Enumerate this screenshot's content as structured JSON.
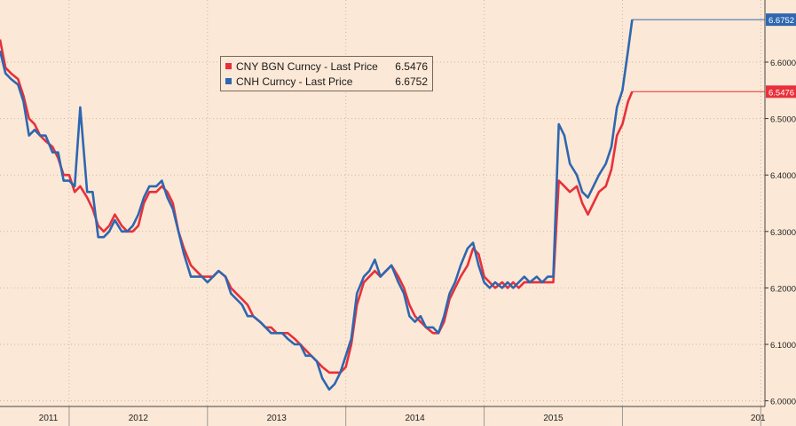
{
  "chart_data": {
    "type": "line",
    "title": "",
    "xlabel": "",
    "ylabel": "",
    "x_ticks": [
      "2011",
      "2012",
      "2013",
      "2014",
      "2015",
      "201"
    ],
    "y_ticks": [
      "6.0000",
      "6.1000",
      "6.2000",
      "6.3000",
      "6.4000",
      "6.5000",
      "6.6000"
    ],
    "ylim": [
      5.99,
      6.71
    ],
    "xlim": [
      2010.5,
      2016.03
    ],
    "grid": true,
    "legend_position": "top-left",
    "series": [
      {
        "name": "CNY BGN Curncy - Last Price",
        "last_label": "6.5476",
        "color": "#e8303a",
        "points": [
          [
            2010.5,
            6.64
          ],
          [
            2010.54,
            6.59
          ],
          [
            2010.58,
            6.58
          ],
          [
            2010.63,
            6.57
          ],
          [
            2010.67,
            6.54
          ],
          [
            2010.71,
            6.5
          ],
          [
            2010.75,
            6.49
          ],
          [
            2010.79,
            6.47
          ],
          [
            2010.83,
            6.46
          ],
          [
            2010.88,
            6.45
          ],
          [
            2010.92,
            6.43
          ],
          [
            2010.96,
            6.4
          ],
          [
            2011.0,
            6.4
          ],
          [
            2011.04,
            6.37
          ],
          [
            2011.08,
            6.38
          ],
          [
            2011.13,
            6.36
          ],
          [
            2011.17,
            6.34
          ],
          [
            2011.21,
            6.31
          ],
          [
            2011.25,
            6.3
          ],
          [
            2011.29,
            6.31
          ],
          [
            2011.33,
            6.33
          ],
          [
            2011.38,
            6.31
          ],
          [
            2011.42,
            6.3
          ],
          [
            2011.46,
            6.3
          ],
          [
            2011.5,
            6.31
          ],
          [
            2011.54,
            6.35
          ],
          [
            2011.58,
            6.37
          ],
          [
            2011.63,
            6.37
          ],
          [
            2011.67,
            6.38
          ],
          [
            2011.71,
            6.37
          ],
          [
            2011.75,
            6.35
          ],
          [
            2011.79,
            6.3
          ],
          [
            2011.83,
            6.27
          ],
          [
            2011.88,
            6.24
          ],
          [
            2011.92,
            6.23
          ],
          [
            2011.96,
            6.22
          ],
          [
            2012.0,
            6.22
          ],
          [
            2012.04,
            6.22
          ],
          [
            2012.08,
            6.23
          ],
          [
            2012.13,
            6.22
          ],
          [
            2012.17,
            6.2
          ],
          [
            2012.21,
            6.19
          ],
          [
            2012.25,
            6.18
          ],
          [
            2012.29,
            6.17
          ],
          [
            2012.33,
            6.15
          ],
          [
            2012.38,
            6.14
          ],
          [
            2012.42,
            6.13
          ],
          [
            2012.46,
            6.13
          ],
          [
            2012.5,
            6.12
          ],
          [
            2012.54,
            6.12
          ],
          [
            2012.58,
            6.12
          ],
          [
            2012.63,
            6.11
          ],
          [
            2012.67,
            6.1
          ],
          [
            2012.71,
            6.09
          ],
          [
            2012.75,
            6.08
          ],
          [
            2012.79,
            6.07
          ],
          [
            2012.83,
            6.06
          ],
          [
            2012.88,
            6.05
          ],
          [
            2012.92,
            6.05
          ],
          [
            2012.96,
            6.05
          ],
          [
            2013.0,
            6.06
          ],
          [
            2013.04,
            6.1
          ],
          [
            2013.08,
            6.17
          ],
          [
            2013.13,
            6.21
          ],
          [
            2013.17,
            6.22
          ],
          [
            2013.21,
            6.23
          ],
          [
            2013.25,
            6.22
          ],
          [
            2013.29,
            6.23
          ],
          [
            2013.33,
            6.24
          ],
          [
            2013.38,
            6.22
          ],
          [
            2013.42,
            6.2
          ],
          [
            2013.46,
            6.17
          ],
          [
            2013.5,
            6.15
          ],
          [
            2013.54,
            6.14
          ],
          [
            2013.58,
            6.13
          ],
          [
            2013.63,
            6.12
          ],
          [
            2013.67,
            6.12
          ],
          [
            2013.71,
            6.14
          ],
          [
            2013.75,
            6.18
          ],
          [
            2013.79,
            6.2
          ],
          [
            2013.83,
            6.22
          ],
          [
            2013.88,
            6.24
          ],
          [
            2013.92,
            6.27
          ],
          [
            2013.96,
            6.26
          ],
          [
            2014.0,
            6.22
          ],
          [
            2014.04,
            6.21
          ],
          [
            2014.08,
            6.2
          ],
          [
            2014.13,
            6.21
          ],
          [
            2014.17,
            6.2
          ],
          [
            2014.21,
            6.21
          ],
          [
            2014.25,
            6.2
          ],
          [
            2014.29,
            6.21
          ],
          [
            2014.33,
            6.21
          ],
          [
            2014.38,
            6.21
          ],
          [
            2014.42,
            6.21
          ],
          [
            2014.46,
            6.21
          ],
          [
            2014.5,
            6.21
          ],
          [
            2014.54,
            6.39
          ],
          [
            2014.58,
            6.38
          ],
          [
            2014.62,
            6.37
          ],
          [
            2014.67,
            6.38
          ],
          [
            2014.71,
            6.35
          ],
          [
            2014.75,
            6.33
          ],
          [
            2014.79,
            6.35
          ],
          [
            2014.83,
            6.37
          ],
          [
            2014.88,
            6.38
          ],
          [
            2014.92,
            6.41
          ],
          [
            2014.96,
            6.47
          ],
          [
            2015.0,
            6.49
          ],
          [
            2015.04,
            6.53
          ],
          [
            2015.07,
            6.5476
          ]
        ]
      },
      {
        "name": "CNH Curncy - Last Price",
        "last_label": "6.6752",
        "color": "#2e67b0",
        "points": [
          [
            2010.5,
            6.62
          ],
          [
            2010.54,
            6.58
          ],
          [
            2010.58,
            6.57
          ],
          [
            2010.63,
            6.56
          ],
          [
            2010.67,
            6.53
          ],
          [
            2010.71,
            6.47
          ],
          [
            2010.75,
            6.48
          ],
          [
            2010.79,
            6.47
          ],
          [
            2010.83,
            6.47
          ],
          [
            2010.88,
            6.44
          ],
          [
            2010.92,
            6.44
          ],
          [
            2010.96,
            6.39
          ],
          [
            2011.0,
            6.39
          ],
          [
            2011.04,
            6.38
          ],
          [
            2011.08,
            6.52
          ],
          [
            2011.13,
            6.37
          ],
          [
            2011.17,
            6.37
          ],
          [
            2011.21,
            6.29
          ],
          [
            2011.25,
            6.29
          ],
          [
            2011.29,
            6.3
          ],
          [
            2011.33,
            6.32
          ],
          [
            2011.38,
            6.3
          ],
          [
            2011.42,
            6.3
          ],
          [
            2011.46,
            6.31
          ],
          [
            2011.5,
            6.33
          ],
          [
            2011.54,
            6.36
          ],
          [
            2011.58,
            6.38
          ],
          [
            2011.63,
            6.38
          ],
          [
            2011.67,
            6.39
          ],
          [
            2011.71,
            6.36
          ],
          [
            2011.75,
            6.34
          ],
          [
            2011.79,
            6.3
          ],
          [
            2011.83,
            6.26
          ],
          [
            2011.88,
            6.22
          ],
          [
            2011.92,
            6.22
          ],
          [
            2011.96,
            6.22
          ],
          [
            2012.0,
            6.21
          ],
          [
            2012.04,
            6.22
          ],
          [
            2012.08,
            6.23
          ],
          [
            2012.13,
            6.22
          ],
          [
            2012.17,
            6.19
          ],
          [
            2012.21,
            6.18
          ],
          [
            2012.25,
            6.17
          ],
          [
            2012.29,
            6.15
          ],
          [
            2012.33,
            6.15
          ],
          [
            2012.38,
            6.14
          ],
          [
            2012.42,
            6.13
          ],
          [
            2012.46,
            6.12
          ],
          [
            2012.5,
            6.12
          ],
          [
            2012.54,
            6.12
          ],
          [
            2012.58,
            6.11
          ],
          [
            2012.63,
            6.1
          ],
          [
            2012.67,
            6.1
          ],
          [
            2012.71,
            6.08
          ],
          [
            2012.75,
            6.08
          ],
          [
            2012.79,
            6.07
          ],
          [
            2012.83,
            6.04
          ],
          [
            2012.88,
            6.02
          ],
          [
            2012.92,
            6.03
          ],
          [
            2012.96,
            6.05
          ],
          [
            2013.0,
            6.08
          ],
          [
            2013.04,
            6.11
          ],
          [
            2013.08,
            6.19
          ],
          [
            2013.13,
            6.22
          ],
          [
            2013.17,
            6.23
          ],
          [
            2013.21,
            6.25
          ],
          [
            2013.25,
            6.22
          ],
          [
            2013.29,
            6.23
          ],
          [
            2013.33,
            6.24
          ],
          [
            2013.38,
            6.21
          ],
          [
            2013.42,
            6.19
          ],
          [
            2013.46,
            6.15
          ],
          [
            2013.5,
            6.14
          ],
          [
            2013.54,
            6.15
          ],
          [
            2013.58,
            6.13
          ],
          [
            2013.63,
            6.13
          ],
          [
            2013.67,
            6.12
          ],
          [
            2013.71,
            6.15
          ],
          [
            2013.75,
            6.19
          ],
          [
            2013.79,
            6.21
          ],
          [
            2013.83,
            6.24
          ],
          [
            2013.88,
            6.27
          ],
          [
            2013.92,
            6.28
          ],
          [
            2013.96,
            6.24
          ],
          [
            2014.0,
            6.21
          ],
          [
            2014.04,
            6.2
          ],
          [
            2014.08,
            6.21
          ],
          [
            2014.13,
            6.2
          ],
          [
            2014.17,
            6.21
          ],
          [
            2014.21,
            6.2
          ],
          [
            2014.25,
            6.21
          ],
          [
            2014.29,
            6.22
          ],
          [
            2014.33,
            6.21
          ],
          [
            2014.38,
            6.22
          ],
          [
            2014.42,
            6.21
          ],
          [
            2014.46,
            6.22
          ],
          [
            2014.5,
            6.22
          ],
          [
            2014.54,
            6.49
          ],
          [
            2014.58,
            6.47
          ],
          [
            2014.62,
            6.42
          ],
          [
            2014.67,
            6.4
          ],
          [
            2014.71,
            6.37
          ],
          [
            2014.75,
            6.36
          ],
          [
            2014.79,
            6.38
          ],
          [
            2014.83,
            6.4
          ],
          [
            2014.88,
            6.42
          ],
          [
            2014.92,
            6.45
          ],
          [
            2014.96,
            6.52
          ],
          [
            2015.0,
            6.55
          ],
          [
            2015.04,
            6.62
          ],
          [
            2015.07,
            6.6752
          ]
        ]
      }
    ]
  }
}
